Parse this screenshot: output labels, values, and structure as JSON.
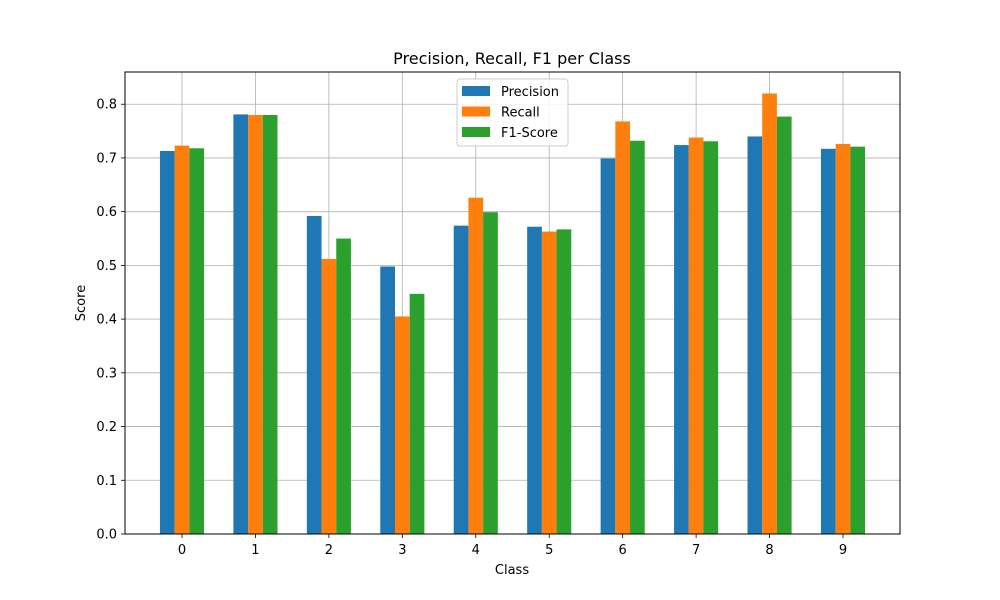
{
  "chart_data": {
    "type": "bar",
    "title": "Precision, Recall, F1 per Class",
    "xlabel": "Class",
    "ylabel": "Score",
    "categories": [
      "0",
      "1",
      "2",
      "3",
      "4",
      "5",
      "6",
      "7",
      "8",
      "9"
    ],
    "series": [
      {
        "name": "Precision",
        "color": "#1f77b4",
        "values": [
          0.713,
          0.781,
          0.592,
          0.498,
          0.574,
          0.572,
          0.699,
          0.724,
          0.74,
          0.717
        ]
      },
      {
        "name": "Recall",
        "color": "#ff7f0e",
        "values": [
          0.723,
          0.78,
          0.512,
          0.405,
          0.626,
          0.563,
          0.768,
          0.738,
          0.82,
          0.726
        ]
      },
      {
        "name": "F1-Score",
        "color": "#2ca02c",
        "values": [
          0.718,
          0.78,
          0.55,
          0.447,
          0.599,
          0.567,
          0.732,
          0.731,
          0.777,
          0.721
        ]
      }
    ],
    "ylim": [
      0,
      0.86
    ],
    "yticks": [
      "0.0",
      "0.1",
      "0.2",
      "0.3",
      "0.4",
      "0.5",
      "0.6",
      "0.7",
      "0.8"
    ],
    "grid": true,
    "legend_position": "top-center"
  }
}
